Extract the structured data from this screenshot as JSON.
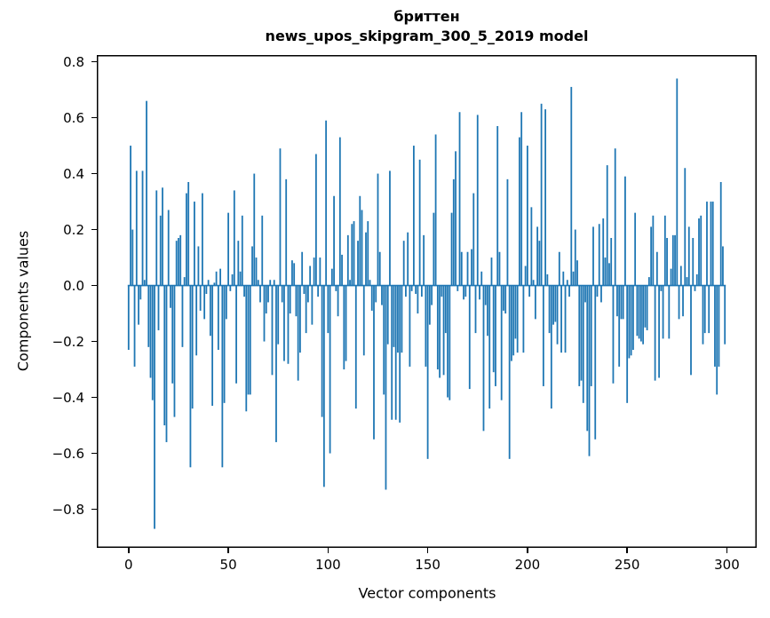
{
  "title": {
    "line1": "бриттен",
    "line2": "news_upos_skipgram_300_5_2019 model"
  },
  "chart_data": {
    "type": "bar",
    "title": "бриттен\nnews_upos_skipgram_300_5_2019 model",
    "xlabel": "Vector components",
    "ylabel": "Components values",
    "bar_color": "#1f77b4",
    "axis_color": "#000000",
    "grid": false,
    "legend": null,
    "xlim": [
      -15.95,
      314.95
    ],
    "ylim": [
      -0.938,
      0.824
    ],
    "x_tick_values": [
      0,
      50,
      100,
      150,
      200,
      250,
      300
    ],
    "x_tick_labels": [
      "0",
      "50",
      "100",
      "150",
      "200",
      "250",
      "300"
    ],
    "y_tick_values": [
      0.8,
      0.6,
      0.4,
      0.2,
      0.0,
      -0.2,
      -0.4,
      -0.6,
      -0.8
    ],
    "y_tick_labels": [
      "0.8",
      "0.6",
      "0.4",
      "0.2",
      "0.0",
      "−0.2",
      "−0.4",
      "−0.6",
      "−0.8"
    ],
    "x_start": 0,
    "values": [
      -0.23,
      0.5,
      0.2,
      -0.29,
      0.41,
      -0.14,
      -0.05,
      0.41,
      0.02,
      0.66,
      -0.22,
      -0.33,
      -0.41,
      -0.87,
      0.34,
      -0.16,
      0.25,
      0.35,
      -0.5,
      -0.56,
      0.27,
      -0.08,
      -0.35,
      -0.47,
      0.16,
      0.17,
      0.18,
      -0.22,
      0.03,
      0.33,
      0.37,
      -0.65,
      -0.44,
      0.3,
      -0.25,
      0.14,
      -0.09,
      0.33,
      -0.12,
      -0.03,
      0.02,
      -0.18,
      -0.43,
      0.01,
      0.05,
      -0.23,
      0.06,
      -0.65,
      -0.42,
      -0.12,
      0.26,
      -0.02,
      0.04,
      0.34,
      -0.35,
      0.16,
      0.05,
      0.25,
      -0.04,
      -0.45,
      -0.39,
      -0.39,
      0.14,
      0.4,
      0.1,
      0.02,
      -0.06,
      0.25,
      -0.2,
      -0.1,
      -0.06,
      0.02,
      -0.32,
      0.02,
      -0.56,
      -0.21,
      0.49,
      -0.06,
      -0.27,
      0.38,
      -0.28,
      -0.1,
      0.09,
      0.08,
      -0.11,
      -0.34,
      -0.24,
      0.12,
      -0.03,
      -0.17,
      -0.06,
      0.07,
      -0.14,
      0.1,
      0.47,
      -0.04,
      0.1,
      -0.47,
      -0.72,
      0.59,
      -0.17,
      -0.6,
      0.06,
      0.32,
      -0.02,
      -0.11,
      0.53,
      0.11,
      -0.3,
      -0.27,
      0.18,
      0.02,
      0.22,
      0.23,
      -0.44,
      0.16,
      0.32,
      0.27,
      -0.25,
      0.19,
      0.23,
      0.02,
      -0.09,
      -0.55,
      -0.06,
      0.4,
      0.12,
      -0.07,
      -0.39,
      -0.73,
      -0.21,
      0.41,
      -0.48,
      -0.22,
      -0.48,
      -0.24,
      -0.49,
      -0.24,
      0.16,
      -0.04,
      0.19,
      -0.29,
      -0.02,
      0.5,
      -0.03,
      -0.1,
      0.45,
      -0.04,
      0.18,
      -0.29,
      -0.62,
      -0.14,
      -0.07,
      0.26,
      0.54,
      -0.3,
      -0.33,
      -0.04,
      -0.32,
      -0.17,
      -0.4,
      -0.41,
      0.26,
      0.38,
      0.48,
      -0.02,
      0.62,
      0.12,
      -0.05,
      -0.04,
      0.12,
      -0.37,
      0.13,
      0.33,
      -0.17,
      0.61,
      -0.05,
      0.05,
      -0.52,
      -0.07,
      -0.18,
      -0.44,
      0.1,
      -0.31,
      -0.36,
      0.57,
      0.12,
      -0.41,
      -0.09,
      -0.1,
      0.38,
      -0.62,
      -0.27,
      -0.25,
      -0.19,
      -0.24,
      0.53,
      0.62,
      -0.24,
      0.07,
      0.5,
      -0.04,
      0.28,
      0.02,
      -0.12,
      0.21,
      0.16,
      0.65,
      -0.36,
      0.63,
      0.04,
      -0.17,
      -0.44,
      -0.14,
      -0.13,
      -0.21,
      0.12,
      -0.24,
      0.05,
      -0.24,
      0.02,
      -0.04,
      0.71,
      0.05,
      0.2,
      0.09,
      -0.36,
      -0.34,
      -0.42,
      -0.06,
      -0.52,
      -0.61,
      -0.36,
      0.21,
      -0.55,
      -0.04,
      0.22,
      -0.06,
      0.24,
      0.1,
      0.43,
      0.08,
      0.17,
      -0.35,
      0.49,
      -0.11,
      -0.29,
      -0.12,
      -0.12,
      0.39,
      -0.42,
      -0.26,
      -0.25,
      -0.23,
      0.26,
      -0.18,
      -0.19,
      -0.2,
      -0.21,
      -0.15,
      -0.16,
      0.03,
      0.21,
      0.25,
      -0.34,
      0.12,
      -0.33,
      -0.02,
      -0.19,
      0.25,
      0.17,
      -0.19,
      0.06,
      0.18,
      0.18,
      0.74,
      -0.12,
      0.07,
      -0.11,
      0.42,
      0.03,
      0.21,
      -0.32,
      0.17,
      -0.02,
      0.04,
      0.24,
      0.25,
      -0.21,
      -0.17,
      0.3,
      -0.17,
      0.3,
      0.3,
      -0.29,
      -0.39,
      -0.29,
      0.37,
      0.14,
      -0.21
    ]
  }
}
